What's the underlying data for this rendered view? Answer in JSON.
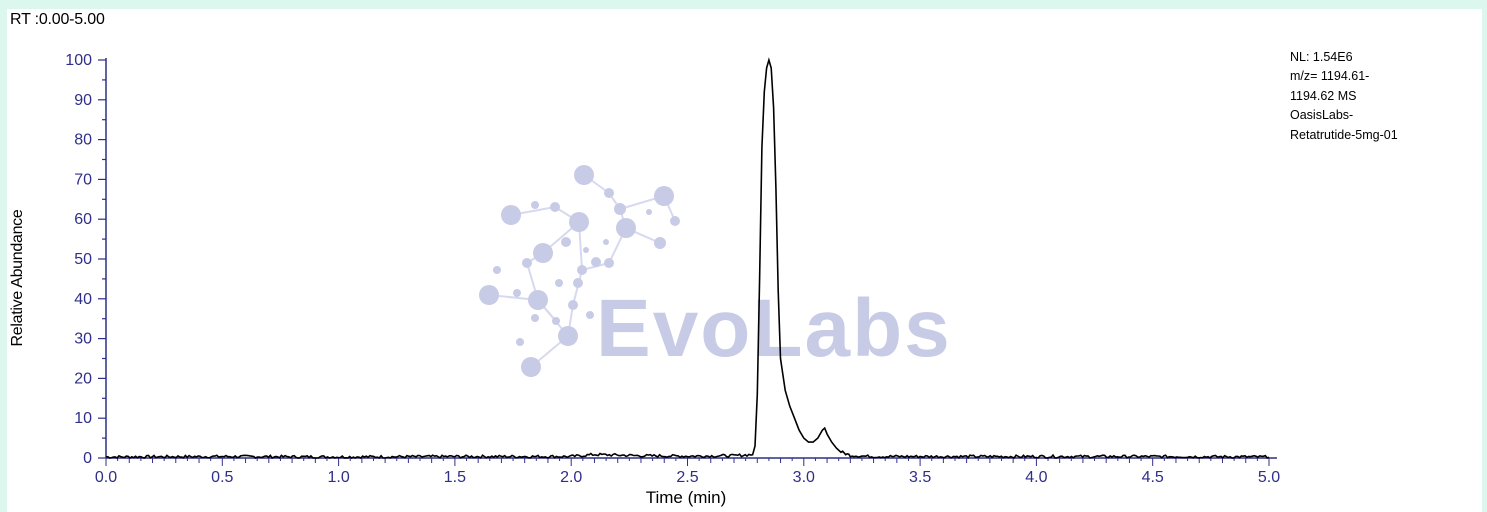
{
  "rt_range": "RT :0.00-5.00",
  "info_lines": [
    "NL: 1.54E6",
    "m/z= 1194.61-",
    "1194.62 MS",
    "OasisLabs-",
    "Retatrutide-5mg-01"
  ],
  "watermark": "EvoLabs",
  "colors": {
    "background": "#dcf7ee",
    "axis": "#2f2f8a",
    "trace": "#000000",
    "watermark": "#c8cbe6"
  },
  "chart_data": {
    "type": "line",
    "title": "",
    "xlabel": "Time (min)",
    "ylabel": "Relative Abundance",
    "xlim": [
      0,
      5
    ],
    "ylim": [
      0,
      100
    ],
    "x_ticks": [
      "0.0",
      "0.5",
      "1.0",
      "1.5",
      "2.0",
      "2.5",
      "3.0",
      "3.5",
      "4.0",
      "4.5",
      "5.0"
    ],
    "y_ticks": [
      "0",
      "10",
      "20",
      "30",
      "40",
      "50",
      "60",
      "70",
      "80",
      "90",
      "100"
    ],
    "grid": false,
    "series": [
      {
        "x": [
          0.0,
          0.5,
          1.0,
          1.5,
          2.0,
          2.1,
          2.3,
          2.5,
          2.7,
          2.78,
          2.79,
          2.8,
          2.81,
          2.82,
          2.83,
          2.84,
          2.85,
          2.86,
          2.87,
          2.88,
          2.89,
          2.9,
          2.92,
          2.94,
          2.96,
          2.98,
          3.0,
          3.02,
          3.04,
          3.06,
          3.08,
          3.09,
          3.1,
          3.12,
          3.14,
          3.16,
          3.18,
          3.2,
          3.25,
          3.3,
          3.5,
          4.0,
          4.5,
          5.0
        ],
        "y": [
          0.2,
          0.3,
          0.2,
          0.3,
          0.3,
          0.8,
          0.5,
          0.4,
          0.5,
          0.8,
          3,
          16,
          45,
          78,
          92,
          98,
          100,
          98,
          88,
          68,
          42,
          25,
          17,
          13,
          10,
          7,
          5,
          4,
          4,
          5,
          7,
          7.5,
          6,
          4,
          2.5,
          1.5,
          1,
          0.6,
          0.4,
          0.3,
          0.3,
          0.3,
          0.3,
          0.2
        ]
      }
    ]
  }
}
